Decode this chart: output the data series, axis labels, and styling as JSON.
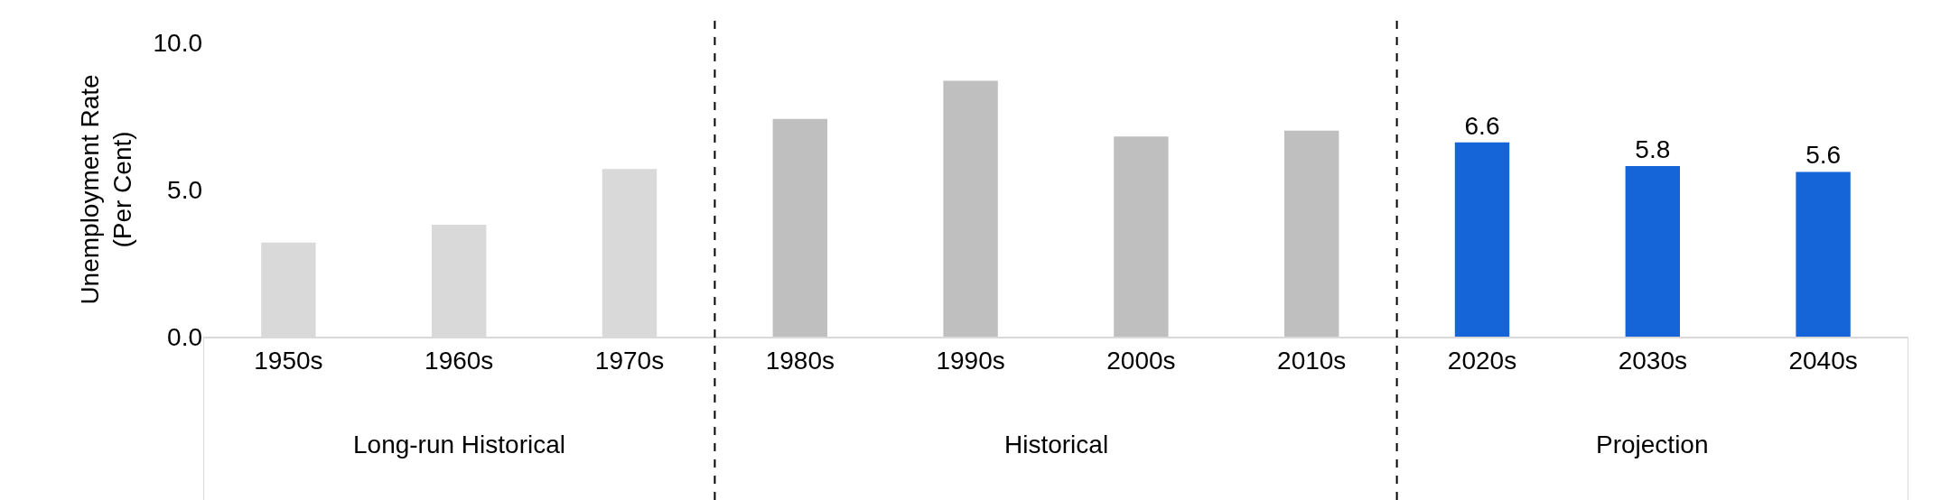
{
  "chart_data": {
    "type": "bar",
    "ylabel": "Unemployment Rate\n(Per Cent)",
    "categories": [
      "1950s",
      "1960s",
      "1970s",
      "1980s",
      "1990s",
      "2000s",
      "2010s",
      "2020s",
      "2030s",
      "2040s"
    ],
    "values": [
      3.2,
      3.8,
      5.7,
      7.4,
      8.7,
      6.8,
      7.0,
      6.6,
      5.8,
      5.6
    ],
    "colors": [
      "#d9d9d9",
      "#d9d9d9",
      "#d9d9d9",
      "#bfbfbf",
      "#bfbfbf",
      "#bfbfbf",
      "#bfbfbf",
      "#1565d8",
      "#1565d8",
      "#1565d8"
    ],
    "value_labels": [
      null,
      null,
      null,
      null,
      null,
      null,
      null,
      "6.6",
      "5.8",
      "5.6"
    ],
    "ylim": [
      0,
      10
    ],
    "yticks": [
      {
        "value": 0,
        "label": "0.0"
      },
      {
        "value": 5,
        "label": "5.0"
      },
      {
        "value": 10,
        "label": "10.0"
      }
    ],
    "annotations": [
      "Long-run Historical",
      "Historical",
      "Projection"
    ],
    "legend": false
  }
}
